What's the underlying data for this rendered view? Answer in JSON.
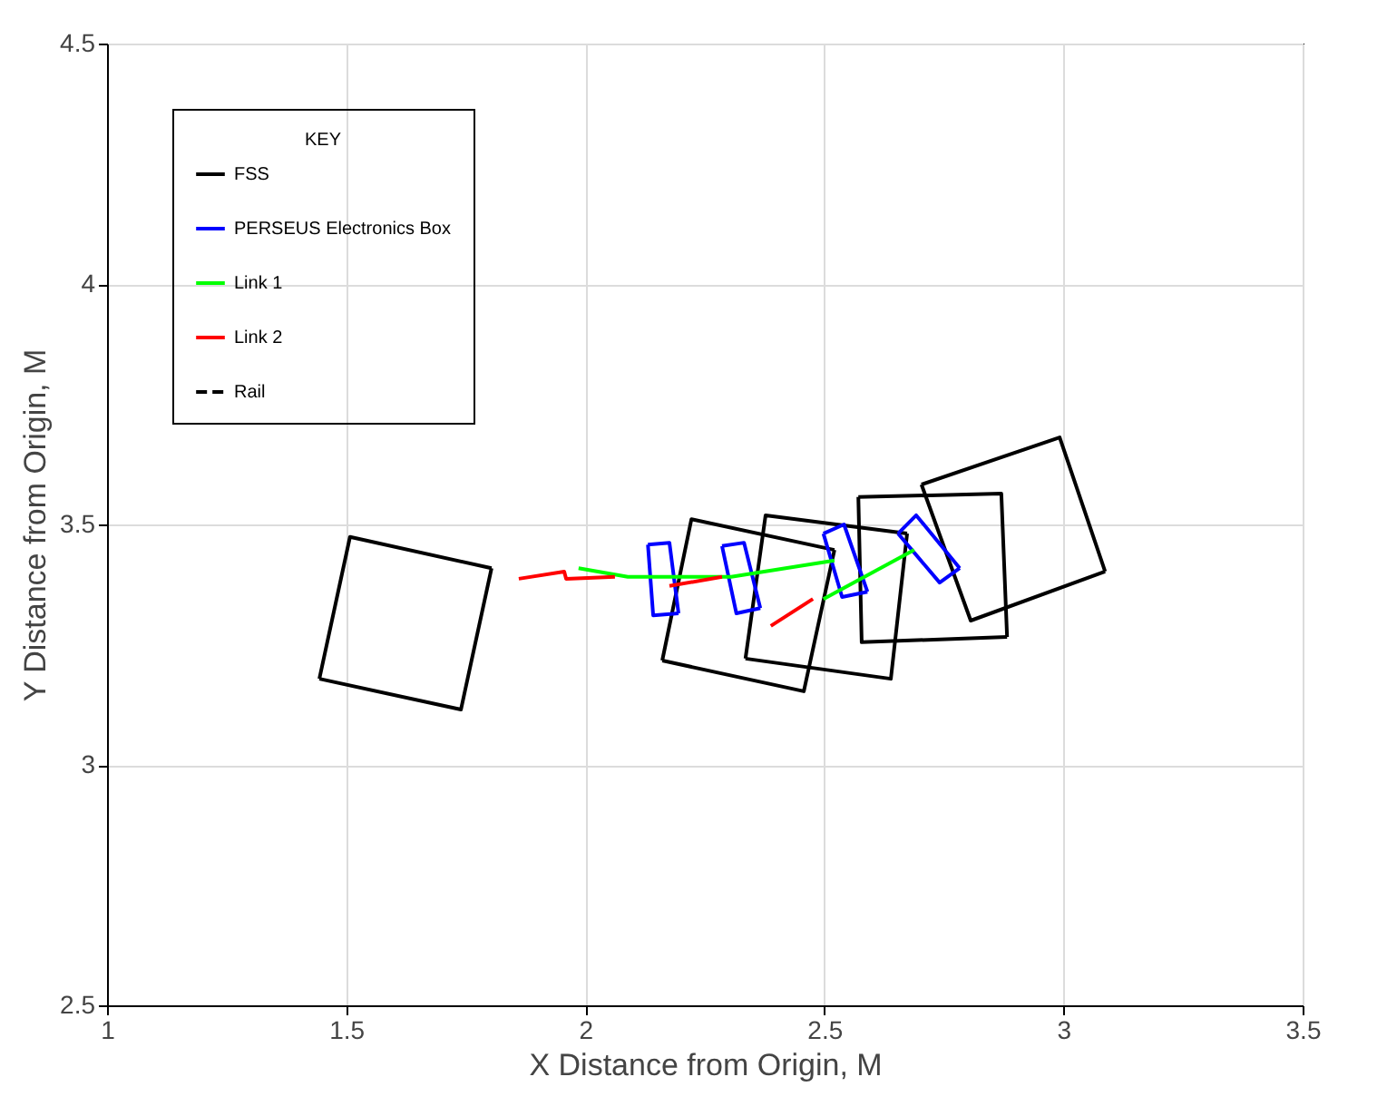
{
  "chart_data": {
    "type": "line",
    "xlabel": "X Distance from Origin, M",
    "ylabel": "Y Distance from Origin, M",
    "legend_title": "KEY",
    "xlim": [
      1,
      3.5
    ],
    "ylim": [
      2.5,
      4.5
    ],
    "xticks": [
      1,
      1.5,
      2,
      2.5,
      3,
      3.5
    ],
    "yticks": [
      2.5,
      3,
      3.5,
      4,
      4.5
    ],
    "grid": true,
    "legend": "top left",
    "line_style": "solid",
    "series": [
      {
        "name": "FSS",
        "color": "#000000",
        "x": [
          1.444,
          1.508,
          1.804
        ],
        "values": [
          3.179,
          3.474,
          3.409
        ]
      },
      {
        "color": "#000000",
        "x": [
          1.444,
          1.74,
          1.804
        ],
        "values": [
          3.179,
          3.115,
          3.409
        ]
      },
      {
        "color": "#000000",
        "x": [
          2.161,
          2.222,
          2.521
        ],
        "values": [
          3.217,
          3.511,
          3.447
        ]
      },
      {
        "color": "#000000",
        "x": [
          2.161,
          2.457,
          2.521
        ],
        "values": [
          3.217,
          3.153,
          3.447
        ]
      },
      {
        "color": "#000000",
        "x": [
          2.335,
          2.377,
          2.673
        ],
        "values": [
          3.221,
          3.519,
          3.481
        ]
      },
      {
        "color": "#000000",
        "x": [
          2.335,
          2.639,
          2.673
        ],
        "values": [
          3.221,
          3.179,
          3.481
        ]
      },
      {
        "color": "#000000",
        "x": [
          2.571,
          2.87,
          2.882
        ],
        "values": [
          3.557,
          3.564,
          3.266
        ]
      },
      {
        "color": "#000000",
        "x": [
          2.571,
          2.578,
          2.882
        ],
        "values": [
          3.557,
          3.255,
          3.266
        ]
      },
      {
        "color": "#000000",
        "x": [
          2.703,
          2.992,
          3.087
        ],
        "values": [
          3.583,
          3.681,
          3.402
        ]
      },
      {
        "color": "#000000",
        "x": [
          2.703,
          2.806,
          3.087
        ],
        "values": [
          3.583,
          3.3,
          3.402
        ]
      },
      {
        "name": "PERSEUS Electronics Box",
        "color": "#0000ff",
        "x": [
          2.131,
          2.176,
          2.195
        ],
        "values": [
          3.458,
          3.462,
          3.315
        ]
      },
      {
        "color": "#0000ff",
        "x": [
          2.131,
          2.142,
          2.195
        ],
        "values": [
          3.458,
          3.311,
          3.315
        ]
      },
      {
        "color": "#0000ff",
        "x": [
          2.286,
          2.332,
          2.366
        ],
        "values": [
          3.455,
          3.462,
          3.326
        ]
      },
      {
        "color": "#0000ff",
        "x": [
          2.286,
          2.316,
          2.366
        ],
        "values": [
          3.455,
          3.315,
          3.326
        ]
      },
      {
        "color": "#0000ff",
        "x": [
          2.498,
          2.541,
          2.59
        ],
        "values": [
          3.481,
          3.5,
          3.36
        ]
      },
      {
        "color": "#0000ff",
        "x": [
          2.498,
          2.537,
          2.59
        ],
        "values": [
          3.481,
          3.349,
          3.36
        ]
      },
      {
        "color": "#0000ff",
        "x": [
          2.654,
          2.692,
          2.783
        ],
        "values": [
          3.481,
          3.519,
          3.409
        ]
      },
      {
        "color": "#0000ff",
        "x": [
          2.654,
          2.741,
          2.783
        ],
        "values": [
          3.481,
          3.379,
          3.409
        ]
      },
      {
        "name": "Link 1",
        "color": "#00ff00",
        "x": [
          1.986,
          2.089,
          2.305,
          2.521
        ],
        "values": [
          3.409,
          3.391,
          3.391,
          3.425
        ]
      },
      {
        "color": "#00ff00",
        "x": [
          2.498,
          2.688
        ],
        "values": [
          3.345,
          3.447
        ]
      },
      {
        "name": "Link 2",
        "color": "#ff0000",
        "x": [
          1.861,
          1.956,
          1.96,
          2.062
        ],
        "values": [
          3.387,
          3.402,
          3.387,
          3.391
        ]
      },
      {
        "color": "#ff0000",
        "x": [
          2.176,
          2.286
        ],
        "values": [
          3.372,
          3.391
        ]
      },
      {
        "color": "#ff0000",
        "x": [
          2.388,
          2.476
        ],
        "values": [
          3.289,
          3.345
        ]
      },
      {
        "name": "Rail",
        "color": "#000000",
        "line_style": "dashed"
      }
    ]
  }
}
